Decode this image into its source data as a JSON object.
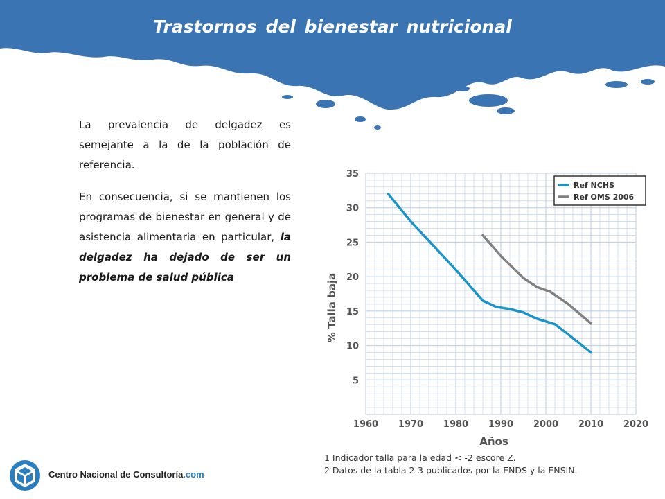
{
  "slide": {
    "title": "Trastornos del bienestar nutricional",
    "paragraph1": "La prevalencia de delgadez es semejante a la de la población de referencia.",
    "paragraph2_plain": "En consecuencia, si se mantienen los programas de bienestar en general y de asistencia alimentaria en particular, ",
    "paragraph2_emphasis": "la delgadez ha dejado de ser un problema de salud pública",
    "footnote1": "1 Indicador talla para la edad < -2 escore Z.",
    "footnote2": "2 Datos de la tabla 2-3 publicados por la ENDS y la ENSIN.",
    "logo_name": "Centro Nacional de Consultoría",
    "logo_domain": ".com"
  },
  "colors": {
    "banner_blue": "#3a74b3",
    "series_nchs": "#1a93c8",
    "series_oms": "#808080",
    "grid": "#b9cbe0"
  },
  "icons": [
    "cube-logo-icon"
  ],
  "chart_data": {
    "type": "line",
    "xlabel": "Años",
    "ylabel": "% Talla baja",
    "xlim": [
      1960,
      2020
    ],
    "ylim": [
      0,
      35
    ],
    "xticks": [
      1960,
      1970,
      1980,
      1990,
      2000,
      2010,
      2020
    ],
    "yticks": [
      5,
      10,
      15,
      20,
      25,
      30,
      35
    ],
    "grid": true,
    "legend_position": "top-right",
    "series": [
      {
        "name": "Ref NCHS",
        "x": [
          1965,
          1970,
          1975,
          1980,
          1986,
          1989,
          1992,
          1995,
          1998,
          2002,
          2005,
          2010
        ],
        "y": [
          32,
          28,
          24.5,
          21,
          16.5,
          15.6,
          15.3,
          14.8,
          13.9,
          13.1,
          11.6,
          9.0
        ]
      },
      {
        "name": "Ref OMS 2006",
        "x": [
          1986,
          1990,
          1995,
          1998,
          2001,
          2005,
          2010
        ],
        "y": [
          26,
          23,
          19.8,
          18.5,
          17.8,
          16.0,
          13.2
        ]
      }
    ]
  }
}
